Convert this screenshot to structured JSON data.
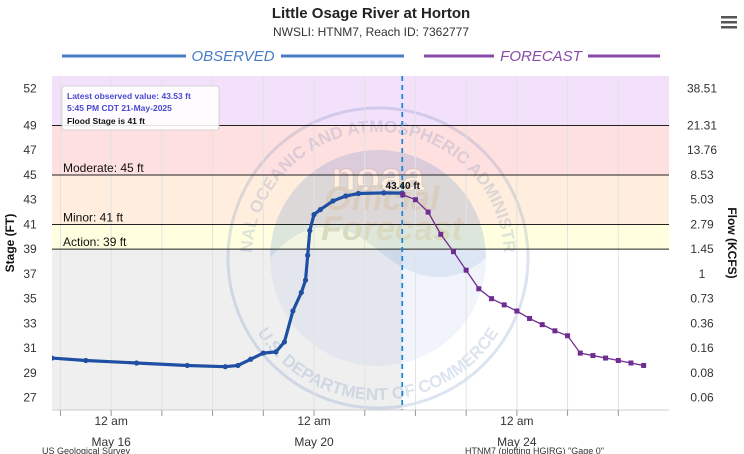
{
  "chart_data": {
    "type": "line",
    "title": "Little Osage River at Horton",
    "subtitle": "NWSLI: HTNM7, Reach ID: 7362777",
    "ylabel": "Stage (FT)",
    "y2label": "Flow (KCFS)",
    "ylim": [
      26,
      53
    ],
    "yticks": [
      27,
      29,
      31,
      33,
      35,
      37,
      39,
      41,
      43,
      45,
      47,
      49,
      52
    ],
    "y2ticks": [
      "0.06",
      "0.08",
      "0.16",
      "0.36",
      "0.73",
      "1",
      "1.45",
      "2.79",
      "5.03",
      "8.53",
      "13.76",
      "21.31",
      "38.51"
    ],
    "x_range_days": [
      "2025-05-14T20:00",
      "2025-05-27T00:00"
    ],
    "x_ticks": [
      {
        "date": "2025-05-15T00:00",
        "top": "",
        "bottom": ""
      },
      {
        "date": "2025-05-16T00:00",
        "top": "12 am",
        "bottom": "May 16"
      },
      {
        "date": "2025-05-17T00:00",
        "top": "",
        "bottom": ""
      },
      {
        "date": "2025-05-18T00:00",
        "top": "",
        "bottom": ""
      },
      {
        "date": "2025-05-19T00:00",
        "top": "",
        "bottom": ""
      },
      {
        "date": "2025-05-20T00:00",
        "top": "12 am",
        "bottom": "May 20"
      },
      {
        "date": "2025-05-21T00:00",
        "top": "",
        "bottom": ""
      },
      {
        "date": "2025-05-22T00:00",
        "top": "",
        "bottom": ""
      },
      {
        "date": "2025-05-23T00:00",
        "top": "",
        "bottom": ""
      },
      {
        "date": "2025-05-24T00:00",
        "top": "12 am",
        "bottom": "May 24"
      },
      {
        "date": "2025-05-25T00:00",
        "top": "",
        "bottom": ""
      },
      {
        "date": "2025-05-26T00:00",
        "top": "",
        "bottom": ""
      }
    ],
    "headers": {
      "observed": "OBSERVED",
      "forecast": "FORECAST"
    },
    "flood_categories": [
      {
        "name": "Moderate",
        "label": "Moderate: 45 ft",
        "stage": 45
      },
      {
        "name": "Minor",
        "label": "Minor: 41 ft",
        "stage": 41
      },
      {
        "name": "Action",
        "label": "Action: 39 ft",
        "stage": 39
      }
    ],
    "flood_category_band_colors": {
      "major": "#f3e0fa",
      "moderate": "#ffe0e0",
      "minor": "#ffeedd",
      "action": "#ffffe0",
      "observed_background": "#efefef"
    },
    "top_stage_line": 49,
    "now_marker_date": "2025-05-21T17:45",
    "observed": {
      "color": "#1f4fa3",
      "series": [
        [
          "2025-05-14T20:00",
          30.2
        ],
        [
          "2025-05-15T12:00",
          30.0
        ],
        [
          "2025-05-16T12:00",
          29.8
        ],
        [
          "2025-05-17T12:00",
          29.6
        ],
        [
          "2025-05-18T06:00",
          29.5
        ],
        [
          "2025-05-18T12:00",
          29.6
        ],
        [
          "2025-05-18T18:00",
          30.1
        ],
        [
          "2025-05-19T00:00",
          30.6
        ],
        [
          "2025-05-19T06:00",
          30.7
        ],
        [
          "2025-05-19T10:00",
          31.5
        ],
        [
          "2025-05-19T14:00",
          34.0
        ],
        [
          "2025-05-19T18:00",
          35.5
        ],
        [
          "2025-05-19T20:00",
          36.5
        ],
        [
          "2025-05-19T21:00",
          38.5
        ],
        [
          "2025-05-19T22:00",
          40.5
        ],
        [
          "2025-05-20T00:00",
          41.8
        ],
        [
          "2025-05-20T03:00",
          42.2
        ],
        [
          "2025-05-20T09:00",
          42.9
        ],
        [
          "2025-05-20T15:00",
          43.3
        ],
        [
          "2025-05-20T21:00",
          43.5
        ],
        [
          "2025-05-21T09:00",
          43.55
        ],
        [
          "2025-05-21T17:45",
          43.53
        ]
      ]
    },
    "forecast": {
      "color": "#6f2d91",
      "series": [
        [
          "2025-05-21T18:00",
          43.4
        ],
        [
          "2025-05-22T00:00",
          43.0
        ],
        [
          "2025-05-22T06:00",
          42.0
        ],
        [
          "2025-05-22T12:00",
          40.2
        ],
        [
          "2025-05-22T18:00",
          38.8
        ],
        [
          "2025-05-23T00:00",
          37.3
        ],
        [
          "2025-05-23T06:00",
          35.8
        ],
        [
          "2025-05-23T12:00",
          35.0
        ],
        [
          "2025-05-23T18:00",
          34.5
        ],
        [
          "2025-05-24T00:00",
          34.0
        ],
        [
          "2025-05-24T06:00",
          33.4
        ],
        [
          "2025-05-24T12:00",
          32.9
        ],
        [
          "2025-05-24T18:00",
          32.4
        ],
        [
          "2025-05-25T00:00",
          32.0
        ],
        [
          "2025-05-25T06:00",
          30.6
        ],
        [
          "2025-05-25T12:00",
          30.4
        ],
        [
          "2025-05-25T18:00",
          30.2
        ],
        [
          "2025-05-26T00:00",
          30.0
        ],
        [
          "2025-05-26T06:00",
          29.8
        ],
        [
          "2025-05-26T12:00",
          29.6
        ]
      ],
      "peak_label": "43.40 ft"
    },
    "tooltip": {
      "line1": "Latest observed value: 43.53 ft",
      "line2": "5:45 PM CDT 21-May-2025",
      "line3": "Flood Stage is 41 ft"
    },
    "watermark": {
      "ring_text": "NATIONAL OCEANIC AND ATMOSPHERIC ADMINISTRATION",
      "ring_text_bottom": "U.S. DEPARTMENT OF COMMERCE",
      "center_word_1": "noaa",
      "center_word_2": "Official",
      "center_word_3": "Forecast"
    },
    "footer": {
      "left": "US Geological Survey",
      "right": "HTNM7 (plotting HGIRG) \"Gage 0\""
    }
  },
  "menu": {
    "icon": "hamburger-menu-icon"
  }
}
